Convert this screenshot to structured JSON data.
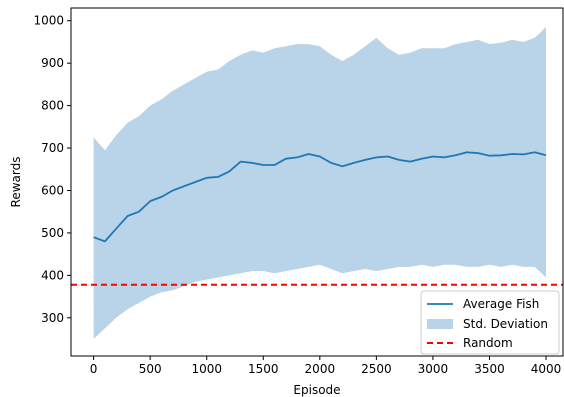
{
  "chart_data": {
    "type": "line",
    "title": "",
    "xlabel": "Episode",
    "ylabel": "Rewards",
    "xlim": [
      -200,
      4150
    ],
    "ylim": [
      210,
      1030
    ],
    "xticks": [
      0,
      500,
      1000,
      1500,
      2000,
      2500,
      3000,
      3500,
      4000
    ],
    "yticks": [
      300,
      400,
      500,
      600,
      700,
      800,
      900,
      1000
    ],
    "grid": false,
    "legend_position": "lower right",
    "colors": {
      "mean": "#1f77b4",
      "band": "#b9d4e9",
      "random": "#ff0000"
    },
    "x": [
      0,
      100,
      200,
      300,
      400,
      500,
      600,
      700,
      800,
      900,
      1000,
      1100,
      1200,
      1300,
      1400,
      1500,
      1600,
      1700,
      1800,
      1900,
      2000,
      2100,
      2200,
      2300,
      2400,
      2500,
      2600,
      2700,
      2800,
      2900,
      3000,
      3100,
      3200,
      3300,
      3400,
      3500,
      3600,
      3700,
      3800,
      3900,
      4000
    ],
    "series": [
      {
        "name": "Average Fish",
        "style": "line",
        "values": [
          490,
          480,
          510,
          540,
          550,
          575,
          585,
          600,
          610,
          620,
          630,
          632,
          645,
          668,
          665,
          660,
          660,
          675,
          678,
          686,
          680,
          665,
          657,
          665,
          672,
          678,
          680,
          672,
          668,
          675,
          680,
          678,
          683,
          690,
          688,
          682,
          683,
          686,
          685,
          690,
          683
        ]
      },
      {
        "name": "Std. Deviation",
        "style": "band",
        "upper": [
          725,
          695,
          730,
          760,
          775,
          800,
          815,
          835,
          850,
          865,
          880,
          885,
          905,
          920,
          930,
          925,
          935,
          940,
          945,
          945,
          940,
          920,
          905,
          920,
          940,
          960,
          935,
          920,
          925,
          935,
          935,
          935,
          945,
          950,
          955,
          945,
          948,
          955,
          950,
          960,
          985
        ],
        "lower": [
          250,
          275,
          300,
          320,
          335,
          350,
          360,
          365,
          375,
          385,
          390,
          395,
          400,
          405,
          410,
          410,
          405,
          410,
          415,
          420,
          425,
          415,
          405,
          410,
          415,
          410,
          415,
          420,
          420,
          425,
          420,
          425,
          425,
          420,
          420,
          425,
          420,
          425,
          420,
          420,
          395
        ]
      },
      {
        "name": "Random",
        "style": "hline",
        "value": 378
      }
    ]
  }
}
